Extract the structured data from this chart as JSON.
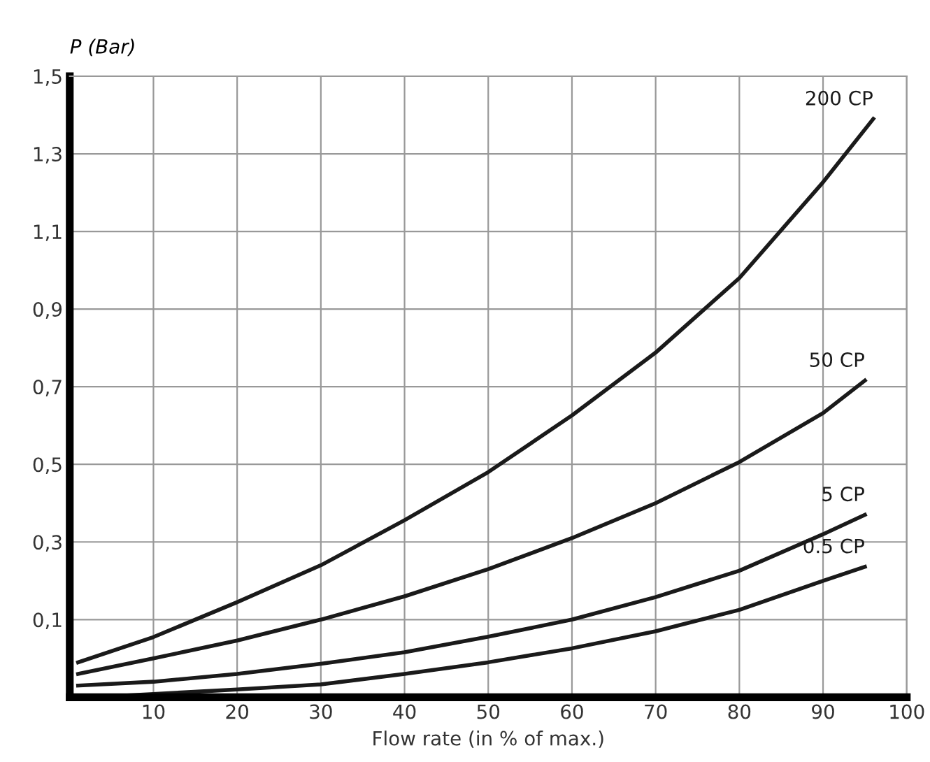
{
  "chart_data": {
    "type": "line",
    "ylabel": "P (Bar)",
    "xlabel": "Flow rate (in % of max.)",
    "xlim": [
      0,
      100
    ],
    "ylim": [
      -0.1,
      1.5
    ],
    "xticks": [
      10,
      20,
      30,
      40,
      50,
      60,
      70,
      80,
      90,
      100
    ],
    "yticks": [
      {
        "value": 0.1,
        "label": "0,1"
      },
      {
        "value": 0.3,
        "label": "0,3"
      },
      {
        "value": 0.5,
        "label": "0,5"
      },
      {
        "value": 0.7,
        "label": "0,7"
      },
      {
        "value": 0.9,
        "label": "0,9"
      },
      {
        "value": 1.1,
        "label": "1,1"
      },
      {
        "value": 1.3,
        "label": "1,3"
      },
      {
        "value": 1.5,
        "label": "1,5"
      }
    ],
    "grid": true,
    "marker": "none",
    "line_style": "solid",
    "series": [
      {
        "name": "200 CP",
        "color": "#1a1a1a",
        "x": [
          1,
          10,
          20,
          30,
          40,
          50,
          60,
          70,
          80,
          90,
          96
        ],
        "values": [
          -0.01,
          0.055,
          0.145,
          0.24,
          0.356,
          0.48,
          0.626,
          0.788,
          0.98,
          1.227,
          1.39
        ]
      },
      {
        "name": "50 CP",
        "color": "#1a1a1a",
        "x": [
          1,
          10,
          20,
          30,
          40,
          50,
          60,
          70,
          80,
          90,
          95
        ],
        "values": [
          -0.04,
          0.0,
          0.046,
          0.1,
          0.16,
          0.23,
          0.31,
          0.4,
          0.506,
          0.632,
          0.716
        ]
      },
      {
        "name": "5 CP",
        "color": "#1a1a1a",
        "x": [
          1,
          10,
          20,
          30,
          40,
          50,
          60,
          70,
          80,
          90,
          95
        ],
        "values": [
          -0.07,
          -0.06,
          -0.04,
          -0.014,
          0.016,
          0.056,
          0.1,
          0.158,
          0.226,
          0.32,
          0.37
        ]
      },
      {
        "name": "0.5 CP",
        "color": "#1a1a1a",
        "x": [
          3,
          20,
          30,
          40,
          50,
          60,
          70,
          80,
          90,
          95
        ],
        "values": [
          -0.1,
          -0.08,
          -0.067,
          -0.04,
          -0.01,
          0.026,
          0.07,
          0.125,
          0.2,
          0.236
        ]
      }
    ]
  }
}
